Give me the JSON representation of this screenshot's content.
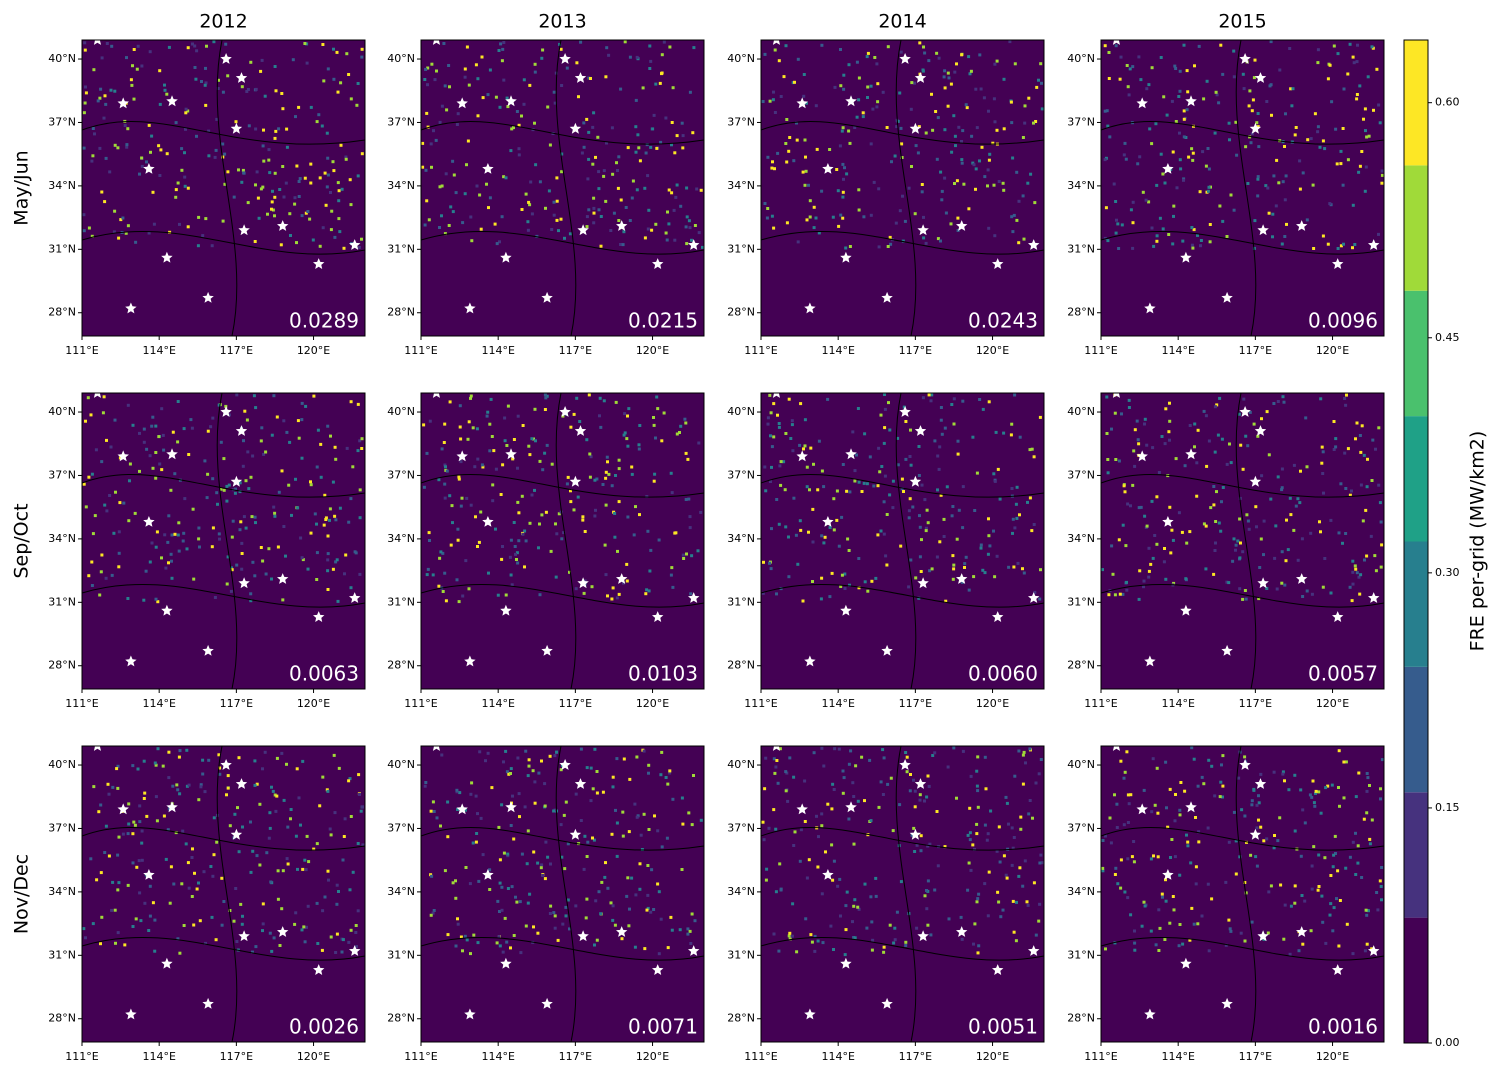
{
  "columns": [
    "2012",
    "2013",
    "2014",
    "2015"
  ],
  "rows": [
    "May/Jun",
    "Sep/Oct",
    "Nov/Dec"
  ],
  "panels": [
    [
      "0.0289",
      "0.0215",
      "0.0243",
      "0.0096"
    ],
    [
      "0.0063",
      "0.0103",
      "0.0060",
      "0.0057"
    ],
    [
      "0.0026",
      "0.0071",
      "0.0051",
      "0.0016"
    ]
  ],
  "lat_range": [
    26.9,
    40.9
  ],
  "lon_range": [
    111,
    122
  ],
  "lat_ticks": [
    {
      "value": 40,
      "label": "40°N"
    },
    {
      "value": 37,
      "label": "37°N"
    },
    {
      "value": 34,
      "label": "34°N"
    },
    {
      "value": 31,
      "label": "31°N"
    },
    {
      "value": 28,
      "label": "28°N"
    }
  ],
  "lon_ticks": [
    {
      "value": 111,
      "label": "111°E"
    },
    {
      "value": 114,
      "label": "114°E"
    },
    {
      "value": 117,
      "label": "117°E"
    },
    {
      "value": 120,
      "label": "120°E"
    }
  ],
  "colorbar": {
    "label": "FRE per-grid (MW/km2)",
    "bounds": [
      0,
      0.08,
      0.16,
      0.24,
      0.32,
      0.4,
      0.48,
      0.56,
      0.64
    ],
    "colors": [
      "#440154",
      "#46327e",
      "#365c8d",
      "#277f8e",
      "#1fa187",
      "#4ac16d",
      "#a0da39",
      "#fde725"
    ],
    "ticks": [
      {
        "value": 0,
        "label": "0.00"
      },
      {
        "value": 0.15,
        "label": "0.15"
      },
      {
        "value": 0.3,
        "label": "0.30"
      },
      {
        "value": 0.45,
        "label": "0.45"
      },
      {
        "value": 0.6,
        "label": "0.60"
      }
    ]
  }
}
